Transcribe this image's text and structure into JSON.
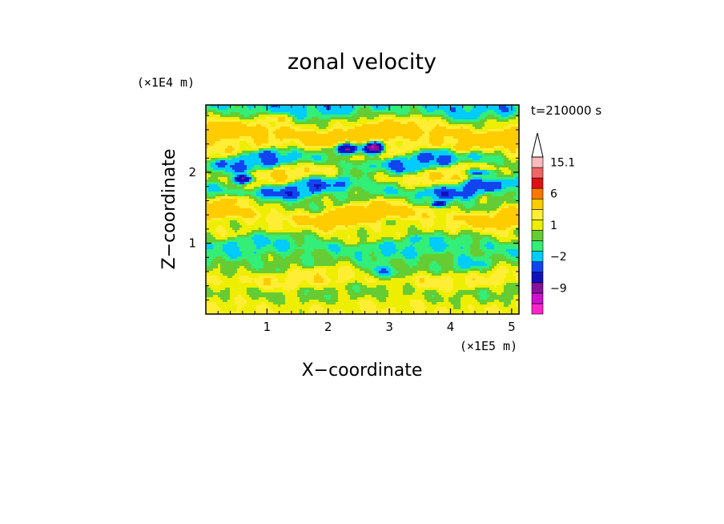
{
  "chart_data": {
    "type": "heatmap",
    "title": "zonal velocity",
    "xlabel": "X−coordinate",
    "ylabel": "Z−coordinate",
    "x_unit": "(×1E5 m)",
    "y_unit": "(×1E4 m)",
    "time_label": "t=210000 s",
    "xlim": [
      0,
      5.12
    ],
    "ylim": [
      0,
      2.95
    ],
    "x_ticks": [
      1,
      2,
      3,
      4,
      5
    ],
    "y_ticks": [
      1,
      2
    ],
    "x_tick_labels": [
      "1",
      "2",
      "3",
      "4",
      "5"
    ],
    "y_tick_labels": [
      "1",
      "2"
    ],
    "colorbar": {
      "levels": [
        -15,
        -12,
        -9,
        -6,
        -3,
        -2,
        -1,
        0,
        1,
        2,
        3,
        6,
        9,
        12,
        15.1
      ],
      "labels": [
        {
          "value": 15.1,
          "text": "15.1"
        },
        {
          "value": 6,
          "text": "6"
        },
        {
          "value": 1,
          "text": "1"
        },
        {
          "value": -2,
          "text": "−2"
        },
        {
          "value": -9,
          "text": "−9"
        }
      ],
      "colors": [
        "#ff22cc",
        "#cc11cc",
        "#881199",
        "#1111bb",
        "#1144ee",
        "#00ccff",
        "#33ee77",
        "#66cc33",
        "#eeee00",
        "#ffee33",
        "#ffcc00",
        "#ff7700",
        "#dd1111",
        "#ee6666",
        "#ffbbbb"
      ]
    },
    "bands": [
      {
        "y": 0.1,
        "amp": 0.05,
        "v": 2
      },
      {
        "y": 0.28,
        "amp": 0.06,
        "v": 0.5
      },
      {
        "y": 0.5,
        "amp": 0.07,
        "v": 2.5
      },
      {
        "y": 0.72,
        "amp": 0.08,
        "v": 0.3
      },
      {
        "y": 0.95,
        "amp": 0.1,
        "v": -1
      },
      {
        "y": 1.18,
        "amp": 0.1,
        "v": 1.5
      },
      {
        "y": 1.4,
        "amp": 0.12,
        "v": 4
      },
      {
        "y": 1.6,
        "amp": 0.12,
        "v": 0.5
      },
      {
        "y": 1.78,
        "amp": 0.1,
        "v": -2.5
      },
      {
        "y": 1.95,
        "amp": 0.1,
        "v": 3
      },
      {
        "y": 2.15,
        "amp": 0.1,
        "v": -2
      },
      {
        "y": 2.35,
        "amp": 0.12,
        "v": 2.5
      },
      {
        "y": 2.55,
        "amp": 0.1,
        "v": 5
      },
      {
        "y": 2.72,
        "amp": 0.08,
        "v": 1.5
      },
      {
        "y": 2.85,
        "amp": 0.06,
        "v": -1.5
      }
    ],
    "features": [
      {
        "x": 2.3,
        "y": 2.33,
        "rx": 0.25,
        "ry": 0.1,
        "v": -6
      },
      {
        "x": 2.75,
        "y": 2.35,
        "rx": 0.2,
        "ry": 0.1,
        "v": -9
      },
      {
        "x": 0.6,
        "y": 1.9,
        "rx": 0.2,
        "ry": 0.08,
        "v": -6
      },
      {
        "x": 0.15,
        "y": 2.55,
        "rx": 0.12,
        "ry": 0.08,
        "v": 6
      },
      {
        "x": 4.95,
        "y": 2.5,
        "rx": 0.15,
        "ry": 0.08,
        "v": 6
      },
      {
        "x": 4.2,
        "y": 2.35,
        "rx": 0.2,
        "ry": 0.08,
        "v": 6
      },
      {
        "x": 4.5,
        "y": 2.0,
        "rx": 0.3,
        "ry": 0.06,
        "v": -3
      },
      {
        "x": 3.8,
        "y": 1.55,
        "rx": 0.15,
        "ry": 0.05,
        "v": -6
      },
      {
        "x": 4.3,
        "y": 0.7,
        "rx": 0.35,
        "ry": 0.15,
        "v": -1.5
      },
      {
        "x": 2.9,
        "y": 0.6,
        "rx": 0.35,
        "ry": 0.12,
        "v": -1.5
      },
      {
        "x": 0.5,
        "y": 1.6,
        "rx": 0.3,
        "ry": 0.08,
        "v": 4
      },
      {
        "x": 3.4,
        "y": 2.7,
        "rx": 0.4,
        "ry": 0.1,
        "v": 3
      },
      {
        "x": 1.2,
        "y": 2.75,
        "rx": 0.3,
        "ry": 0.08,
        "v": 3
      }
    ]
  }
}
